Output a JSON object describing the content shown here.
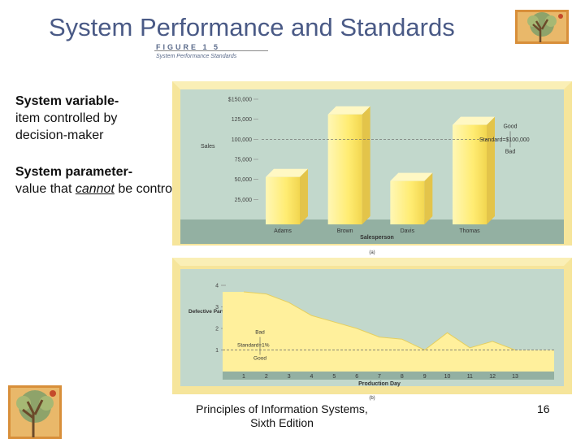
{
  "slide": {
    "title": "System Performance and Standards",
    "figure_label": "FIGURE 1 5",
    "figure_caption": "System Performance Standards",
    "definitions": [
      {
        "term": "System variable-",
        "desc": "item controlled by decision-maker"
      },
      {
        "term": "System parameter-",
        "desc_before": "value that ",
        "desc_emph": "cannot",
        "desc_after": " be controlled"
      }
    ],
    "footer": {
      "line1": "Principles of Information Systems,",
      "line2": "Sixth Edition"
    },
    "page_number": "16"
  },
  "colors": {
    "title": "#4a5a86",
    "chart_wall": "#c2d8cc",
    "chart_floor": "#93b0a2",
    "bar": "#ffee7a",
    "frame": "#f6e59b",
    "area": "#fff09c"
  },
  "chart_data": [
    {
      "type": "bar",
      "panel_label": "(a)",
      "ylabel": "Sales",
      "xlabel": "Salesperson",
      "categories": [
        "Adams",
        "Brown",
        "Davis",
        "Thomas"
      ],
      "values": [
        53000,
        131000,
        48000,
        118000
      ],
      "ylim": [
        0,
        150000
      ],
      "yticks": [
        "25,000",
        "50,000",
        "75,000",
        "100,000",
        "125,000",
        "$150,000"
      ],
      "ytick_values": [
        25000,
        50000,
        75000,
        100000,
        125000,
        150000
      ],
      "standard": {
        "value": 100000,
        "label": "Standard=$100,000"
      },
      "annotations": {
        "above": "Good",
        "below": "Bad"
      }
    },
    {
      "type": "area",
      "panel_label": "(b)",
      "ylabel": "Defective Parts (%)",
      "xlabel": "Production Day",
      "x": [
        1,
        2,
        3,
        4,
        5,
        6,
        7,
        8,
        9,
        10,
        11,
        12,
        13
      ],
      "values": [
        3.7,
        3.6,
        3.2,
        2.6,
        2.3,
        2.0,
        1.6,
        1.5,
        1.0,
        1.8,
        1.1,
        1.4,
        1.0
      ],
      "ylim": [
        0,
        4
      ],
      "yticks": [
        "1",
        "2",
        "3",
        "4"
      ],
      "ytick_values": [
        1,
        2,
        3,
        4
      ],
      "standard": {
        "value": 1,
        "label": "Standard=1%"
      },
      "annotations": {
        "above": "Bad",
        "below": "Good"
      }
    }
  ]
}
